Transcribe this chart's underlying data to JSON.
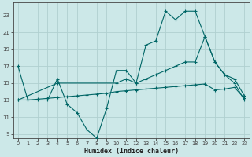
{
  "xlabel": "Humidex (Indice chaleur)",
  "bg_color": "#cce8e8",
  "grid_color": "#b0d0d0",
  "line_color": "#006666",
  "x_ticks": [
    0,
    1,
    2,
    3,
    4,
    5,
    6,
    7,
    8,
    9,
    10,
    11,
    12,
    13,
    14,
    15,
    16,
    17,
    18,
    19,
    20,
    21,
    22,
    23
  ],
  "y_ticks": [
    9,
    11,
    13,
    15,
    17,
    19,
    21,
    23
  ],
  "xlim": [
    -0.5,
    23.5
  ],
  "ylim": [
    8.5,
    24.5
  ],
  "line1_x": [
    0,
    1,
    2,
    3,
    4,
    5,
    6,
    7,
    8,
    9,
    10,
    11,
    12,
    13,
    14,
    15,
    16,
    17,
    18,
    19,
    20,
    21,
    22,
    23
  ],
  "line1_y": [
    17,
    13,
    13,
    13,
    15.5,
    12.5,
    11.5,
    9.5,
    8.5,
    12,
    16.5,
    16.5,
    15,
    19.5,
    20,
    23.5,
    22.5,
    23.5,
    23.5,
    20.5,
    17.5,
    16,
    15,
    13
  ],
  "line2_x": [
    0,
    4,
    10,
    11,
    12,
    13,
    14,
    15,
    16,
    17,
    18,
    19,
    20,
    21,
    22,
    23
  ],
  "line2_y": [
    13,
    15,
    15,
    15.5,
    15,
    15.5,
    16,
    16.5,
    17,
    17.5,
    17.5,
    20.5,
    17.5,
    16,
    15.5,
    13.5
  ],
  "line3_x": [
    0,
    1,
    2,
    3,
    4,
    5,
    6,
    7,
    8,
    9,
    10,
    11,
    12,
    13,
    14,
    15,
    16,
    17,
    18,
    19,
    20,
    21,
    22,
    23
  ],
  "line3_y": [
    13,
    13,
    13.1,
    13.2,
    13.3,
    13.4,
    13.5,
    13.6,
    13.7,
    13.8,
    14.0,
    14.1,
    14.2,
    14.3,
    14.4,
    14.5,
    14.6,
    14.7,
    14.8,
    14.9,
    14.2,
    14.3,
    14.5,
    13.2
  ]
}
